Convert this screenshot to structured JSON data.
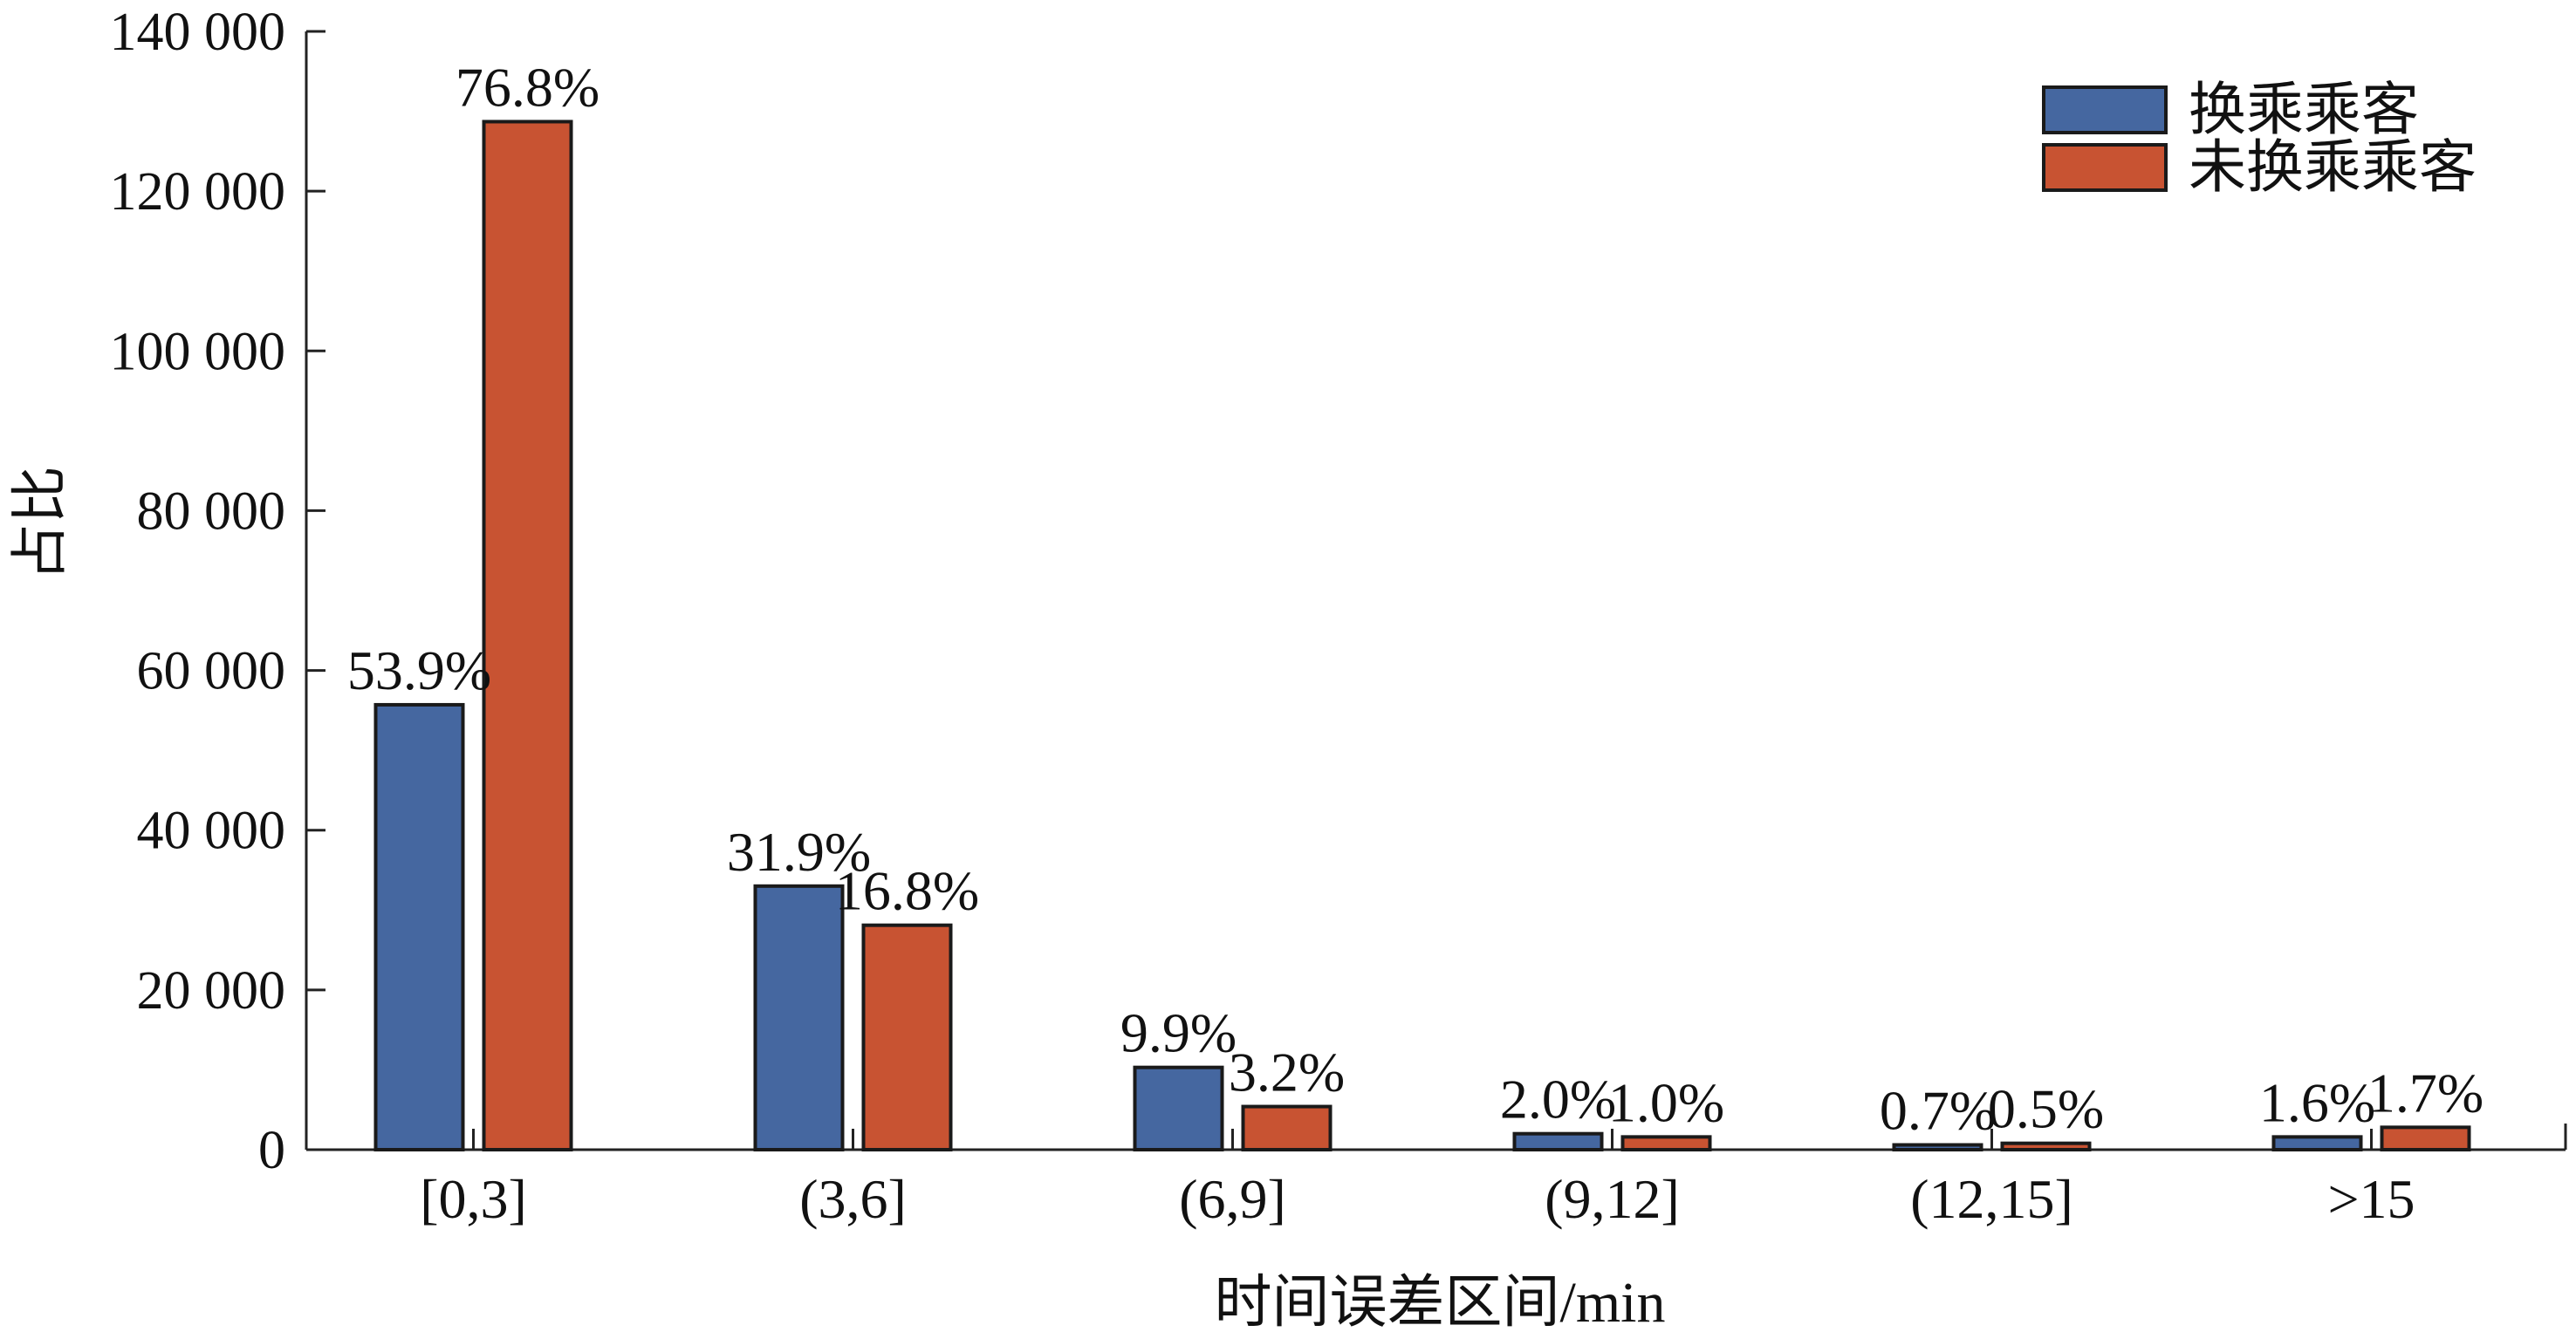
{
  "chart_data": {
    "type": "bar",
    "xlabel": "时间误差区间/min",
    "ylabel": "占比",
    "ylim": [
      0,
      140000
    ],
    "yticks": [
      0,
      20000,
      40000,
      60000,
      80000,
      100000,
      120000,
      140000
    ],
    "ytick_labels": [
      "0",
      "20 000",
      "40 000",
      "60 000",
      "80 000",
      "100 000",
      "120 000",
      "140 000"
    ],
    "categories": [
      "[0,3]",
      "(3,6]",
      "(6,9]",
      "(9,12]",
      "(12,15]",
      ">15"
    ],
    "series": [
      {
        "name": "换乘乘客",
        "color": "#4567a0",
        "values": [
          55700,
          33000,
          10300,
          2000,
          600,
          1600
        ],
        "labels": [
          "53.9%",
          "31.9%",
          "9.9%",
          "2.0%",
          "0.7%",
          "1.6%"
        ]
      },
      {
        "name": "未换乘乘客",
        "color": "#c85332",
        "values": [
          128700,
          28100,
          5400,
          1600,
          800,
          2800
        ],
        "labels": [
          "76.8%",
          "16.8%",
          "3.2%",
          "1.0%",
          "0.5%",
          "1.7%"
        ]
      }
    ],
    "legend": "top-right",
    "grid": false
  }
}
